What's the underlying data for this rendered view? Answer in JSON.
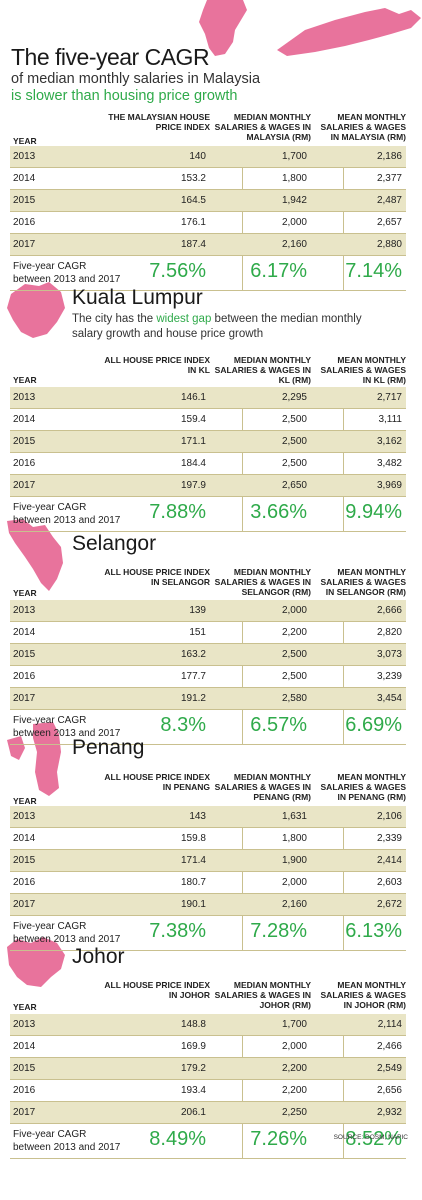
{
  "header": {
    "title": "The five-year CAGR",
    "subtitle_line1": "of median monthly salaries in Malaysia",
    "subtitle_line2": "is slower than housing price growth"
  },
  "colors": {
    "accent_green": "#2faa4a",
    "map_pink": "#e8739c",
    "row_shade": "#e9e5c6"
  },
  "chart_data": [
    {
      "type": "table",
      "title": "Malaysia",
      "columns": [
        "YEAR",
        "THE MALAYSIAN HOUSE PRICE INDEX",
        "MEDIAN MONTHLY SALARIES & WAGES IN MALAYSIA (RM)",
        "MEAN MONTHLY SALARIES & WAGES IN MALAYSIA (RM)"
      ],
      "rows": [
        [
          "2013",
          "140",
          "1,700",
          "2,186"
        ],
        [
          "2014",
          "153.2",
          "1,800",
          "2,377"
        ],
        [
          "2015",
          "164.5",
          "1,942",
          "2,487"
        ],
        [
          "2016",
          "176.1",
          "2,000",
          "2,657"
        ],
        [
          "2017",
          "187.4",
          "2,160",
          "2,880"
        ]
      ],
      "cagr_label": [
        "Five-year CAGR",
        "between 2013 and 2017"
      ],
      "cagr": [
        "7.56%",
        "6.17%",
        "7.14%"
      ]
    },
    {
      "type": "table",
      "title": "Kuala Lumpur",
      "description_parts": [
        "The city has the ",
        "widest gap",
        " between the median monthly salary growth and house price growth"
      ],
      "columns": [
        "YEAR",
        "ALL HOUSE PRICE INDEX IN KL",
        "MEDIAN MONTHLY SALARIES & WAGES IN KL (RM)",
        "MEAN MONTHLY SALARIES & WAGES IN KL (RM)"
      ],
      "rows": [
        [
          "2013",
          "146.1",
          "2,295",
          "2,717"
        ],
        [
          "2014",
          "159.4",
          "2,500",
          "3,111"
        ],
        [
          "2015",
          "171.1",
          "2,500",
          "3,162"
        ],
        [
          "2016",
          "184.4",
          "2,500",
          "3,482"
        ],
        [
          "2017",
          "197.9",
          "2,650",
          "3,969"
        ]
      ],
      "cagr_label": [
        "Five-year CAGR",
        "between 2013 and 2017"
      ],
      "cagr": [
        "7.88%",
        "3.66%",
        "9.94%"
      ]
    },
    {
      "type": "table",
      "title": "Selangor",
      "columns": [
        "YEAR",
        "ALL HOUSE PRICE INDEX IN SELANGOR",
        "MEDIAN MONTHLY SALARIES & WAGES IN SELANGOR (RM)",
        "MEAN MONTHLY SALARIES & WAGES IN SELANGOR (RM)"
      ],
      "rows": [
        [
          "2013",
          "139",
          "2,000",
          "2,666"
        ],
        [
          "2014",
          "151",
          "2,200",
          "2,820"
        ],
        [
          "2015",
          "163.2",
          "2,500",
          "3,073"
        ],
        [
          "2016",
          "177.7",
          "2,500",
          "3,239"
        ],
        [
          "2017",
          "191.2",
          "2,580",
          "3,454"
        ]
      ],
      "cagr_label": [
        "Five-year CAGR",
        "between 2013 and 2017"
      ],
      "cagr": [
        "8.3%",
        "6.57%",
        "6.69%"
      ]
    },
    {
      "type": "table",
      "title": "Penang",
      "columns": [
        "YEAR",
        "ALL HOUSE PRICE INDEX IN PENANG",
        "MEDIAN MONTHLY SALARIES & WAGES IN PENANG (RM)",
        "MEAN MONTHLY SALARIES & WAGES IN PENANG (RM)"
      ],
      "rows": [
        [
          "2013",
          "143",
          "1,631",
          "2,106"
        ],
        [
          "2014",
          "159.8",
          "1,800",
          "2,339"
        ],
        [
          "2015",
          "171.4",
          "1,900",
          "2,414"
        ],
        [
          "2016",
          "180.7",
          "2,000",
          "2,603"
        ],
        [
          "2017",
          "190.1",
          "2,160",
          "2,672"
        ]
      ],
      "cagr_label": [
        "Five-year CAGR",
        "between 2013 and 2017"
      ],
      "cagr": [
        "7.38%",
        "7.28%",
        "6.13%"
      ]
    },
    {
      "type": "table",
      "title": "Johor",
      "columns": [
        "YEAR",
        "ALL HOUSE PRICE INDEX IN JOHOR",
        "MEDIAN MONTHLY SALARIES & WAGES IN JOHOR (RM)",
        "MEAN MONTHLY SALARIES & WAGES IN JOHOR (RM)"
      ],
      "rows": [
        [
          "2013",
          "148.8",
          "1,700",
          "2,114"
        ],
        [
          "2014",
          "169.9",
          "2,000",
          "2,466"
        ],
        [
          "2015",
          "179.2",
          "2,200",
          "2,549"
        ],
        [
          "2016",
          "193.4",
          "2,200",
          "2,656"
        ],
        [
          "2017",
          "206.1",
          "2,250",
          "2,932"
        ]
      ],
      "cagr_label": [
        "Five-year CAGR",
        "between 2013 and 2017"
      ],
      "cagr": [
        "8.49%",
        "7.26%",
        "8.52%"
      ]
    }
  ],
  "source": "SOURCE: DOSM, NAPIC"
}
